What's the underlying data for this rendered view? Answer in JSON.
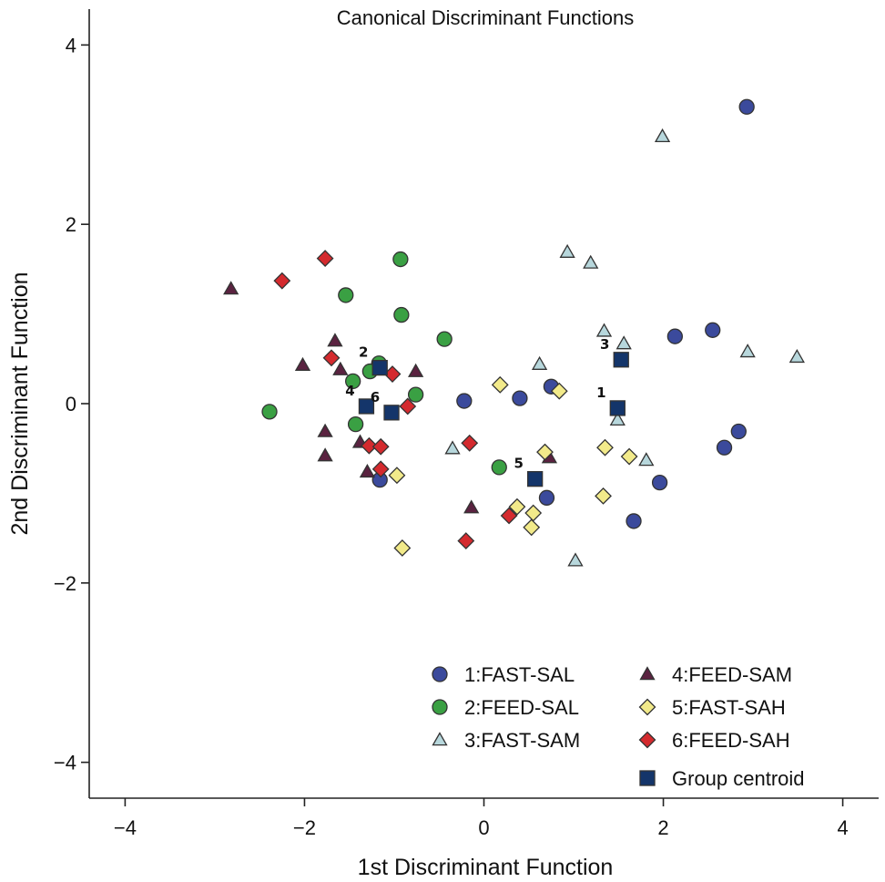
{
  "chart_data": {
    "type": "scatter",
    "title": "Canonical Discriminant Functions",
    "xlabel": "1st Discriminant Function",
    "ylabel": "2nd Discriminant Function",
    "xlim": [
      -4.4,
      4.4
    ],
    "ylim": [
      -4.4,
      4.4
    ],
    "xticks": [
      -4,
      -2,
      0,
      2,
      4
    ],
    "yticks": [
      -4,
      -2,
      0,
      2,
      4
    ],
    "tick_labels": [
      "−4",
      "−2",
      "0",
      "2",
      "4"
    ],
    "grid": false,
    "legend_position": "bottom-right",
    "series": [
      {
        "name": "1:FAST-SAL",
        "marker": "circle",
        "color": "#3b4a9c",
        "points": [
          [
            2.93,
            3.31
          ],
          [
            2.13,
            0.75
          ],
          [
            2.55,
            0.82
          ],
          [
            2.84,
            -0.31
          ],
          [
            2.68,
            -0.49
          ],
          [
            1.96,
            -0.88
          ],
          [
            1.67,
            -1.31
          ],
          [
            0.75,
            0.19
          ],
          [
            0.7,
            -1.05
          ],
          [
            0.4,
            0.06
          ],
          [
            -0.22,
            0.03
          ],
          [
            -1.16,
            -0.85
          ]
        ]
      },
      {
        "name": "2:FEED-SAL",
        "marker": "circle",
        "color": "#3aa043",
        "points": [
          [
            -0.93,
            1.61
          ],
          [
            -1.54,
            1.21
          ],
          [
            -0.92,
            0.99
          ],
          [
            -0.44,
            0.72
          ],
          [
            -1.17,
            0.45
          ],
          [
            -1.27,
            0.36
          ],
          [
            -1.46,
            0.25
          ],
          [
            -0.76,
            0.1
          ],
          [
            -2.39,
            -0.09
          ],
          [
            -1.43,
            -0.23
          ],
          [
            0.17,
            -0.71
          ]
        ]
      },
      {
        "name": "3:FAST-SAM",
        "marker": "triangle",
        "color": "#b7d7dc",
        "points": [
          [
            1.99,
            2.98
          ],
          [
            0.93,
            1.69
          ],
          [
            1.19,
            1.57
          ],
          [
            1.34,
            0.81
          ],
          [
            1.56,
            0.67
          ],
          [
            2.94,
            0.58
          ],
          [
            3.49,
            0.52
          ],
          [
            0.62,
            0.44
          ],
          [
            1.49,
            -0.18
          ],
          [
            -0.35,
            -0.5
          ],
          [
            1.81,
            -0.63
          ],
          [
            1.02,
            -1.75
          ]
        ]
      },
      {
        "name": "4:FEED-SAM",
        "marker": "triangle",
        "color": "#5a2240",
        "points": [
          [
            -2.82,
            1.28
          ],
          [
            -1.66,
            0.7
          ],
          [
            -2.02,
            0.43
          ],
          [
            -1.6,
            0.38
          ],
          [
            -0.76,
            0.36
          ],
          [
            -1.77,
            -0.31
          ],
          [
            -1.38,
            -0.43
          ],
          [
            -1.77,
            -0.58
          ],
          [
            -1.3,
            -0.76
          ],
          [
            0.73,
            -0.6
          ],
          [
            -0.14,
            -1.16
          ]
        ]
      },
      {
        "name": "5:FAST-SAH",
        "marker": "diamond",
        "color": "#f2ea8a",
        "points": [
          [
            0.18,
            0.21
          ],
          [
            0.84,
            0.14
          ],
          [
            0.68,
            -0.54
          ],
          [
            1.35,
            -0.49
          ],
          [
            1.62,
            -0.59
          ],
          [
            -0.97,
            -0.8
          ],
          [
            1.33,
            -1.03
          ],
          [
            0.37,
            -1.15
          ],
          [
            0.55,
            -1.22
          ],
          [
            0.53,
            -1.38
          ],
          [
            -0.91,
            -1.61
          ]
        ]
      },
      {
        "name": "6:FEED-SAH",
        "marker": "diamond",
        "color": "#d42a2e",
        "points": [
          [
            -1.77,
            1.62
          ],
          [
            -2.25,
            1.37
          ],
          [
            -1.7,
            0.51
          ],
          [
            -1.02,
            0.33
          ],
          [
            -0.85,
            -0.03
          ],
          [
            -1.28,
            -0.47
          ],
          [
            -1.15,
            -0.48
          ],
          [
            -1.15,
            -0.73
          ],
          [
            -0.16,
            -0.44
          ],
          [
            0.28,
            -1.25
          ],
          [
            -0.2,
            -1.53
          ]
        ]
      }
    ],
    "centroids": {
      "name": "Group centroid",
      "marker": "square",
      "color": "#14356a",
      "points": [
        {
          "label": "1",
          "x": 1.49,
          "y": -0.05
        },
        {
          "label": "2",
          "x": -1.16,
          "y": 0.4
        },
        {
          "label": "3",
          "x": 1.53,
          "y": 0.49
        },
        {
          "label": "4",
          "x": -1.31,
          "y": -0.03
        },
        {
          "label": "5",
          "x": 0.57,
          "y": -0.84
        },
        {
          "label": "6",
          "x": -1.03,
          "y": -0.1
        }
      ]
    }
  }
}
